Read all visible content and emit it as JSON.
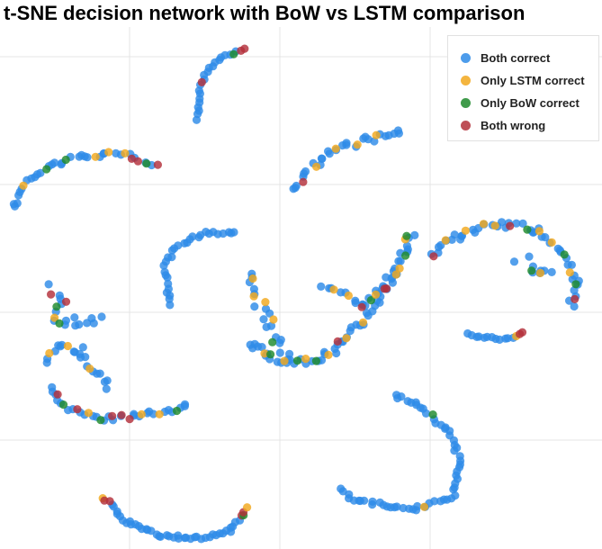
{
  "chart_data": {
    "type": "scatter",
    "title": "t-SNE decision network with BoW vs LSTM comparison",
    "xlabel": "",
    "ylabel": "",
    "grid": true,
    "legend_position": "top-right",
    "series": [
      {
        "name": "Both correct",
        "color": "#2e8be8"
      },
      {
        "name": "Only LSTM correct",
        "color": "#f2a81d"
      },
      {
        "name": "Only BoW correct",
        "color": "#1f8a2c"
      },
      {
        "name": "Both wrong",
        "color": "#b3303a"
      }
    ],
    "clusters": [
      {
        "path": [
          [
            220,
            132
          ],
          [
            222,
            95
          ],
          [
            232,
            75
          ],
          [
            250,
            62
          ],
          [
            272,
            55
          ]
        ],
        "n": 24,
        "jitter": 1.5,
        "labels": {
          "20": 2,
          "22": 3,
          "23": 3,
          "9": 3
        }
      },
      {
        "path": [
          [
            14,
            232
          ],
          [
            30,
            200
          ],
          [
            60,
            182
          ],
          [
            100,
            172
          ],
          [
            140,
            172
          ],
          [
            175,
            182
          ]
        ],
        "n": 40,
        "jitter": 3,
        "labels": {
          "6": 1,
          "12": 2,
          "18": 2,
          "24": 1,
          "28": 1,
          "31": 1,
          "33": 3,
          "35": 3,
          "37": 2,
          "39": 3
        }
      },
      {
        "path": [
          [
            328,
            212
          ],
          [
            345,
            185
          ],
          [
            372,
            165
          ],
          [
            405,
            155
          ],
          [
            445,
            148
          ]
        ],
        "n": 32,
        "jitter": 4,
        "labels": {
          "3": 3,
          "8": 1,
          "15": 1,
          "20": 1,
          "25": 1
        }
      },
      {
        "path": [
          [
            190,
            338
          ],
          [
            182,
            300
          ],
          [
            195,
            275
          ],
          [
            225,
            259
          ],
          [
            262,
            260
          ]
        ],
        "n": 30,
        "jitter": 2,
        "labels": {}
      },
      {
        "path": [
          [
            55,
            320
          ],
          [
            70,
            330
          ],
          [
            58,
            355
          ],
          [
            80,
            357
          ],
          [
            110,
            356
          ]
        ],
        "n": 20,
        "jitter": 5,
        "labels": {
          "1": 3,
          "4": 3,
          "6": 2,
          "8": 1,
          "10": 2
        }
      },
      {
        "path": [
          [
            48,
            400
          ],
          [
            62,
            385
          ],
          [
            90,
            390
          ],
          [
            100,
            410
          ],
          [
            120,
            430
          ]
        ],
        "n": 22,
        "jitter": 5,
        "labels": {
          "2": 1,
          "7": 1,
          "14": 1
        }
      },
      {
        "path": [
          [
            55,
            430
          ],
          [
            75,
            455
          ],
          [
            110,
            465
          ],
          [
            150,
            463
          ],
          [
            180,
            458
          ],
          [
            208,
            450
          ]
        ],
        "n": 38,
        "jitter": 3,
        "labels": {
          "3": 3,
          "6": 2,
          "9": 3,
          "12": 1,
          "15": 2,
          "18": 3,
          "20": 3,
          "22": 3,
          "26": 1,
          "30": 1,
          "34": 2
        }
      },
      {
        "path": [
          [
            278,
            305
          ],
          [
            290,
            340
          ],
          [
            305,
            375
          ],
          [
            320,
            395
          ]
        ],
        "n": 22,
        "jitter": 6,
        "labels": {
          "2": 1,
          "5": 1,
          "8": 1,
          "12": 1,
          "16": 2
        }
      },
      {
        "path": [
          [
            275,
            380
          ],
          [
            300,
            398
          ],
          [
            330,
            402
          ],
          [
            355,
            400
          ],
          [
            375,
            388
          ],
          [
            400,
            360
          ],
          [
            420,
            330
          ],
          [
            440,
            298
          ],
          [
            458,
            258
          ]
        ],
        "n": 70,
        "jitter": 5,
        "labels": {
          "5": 1,
          "9": 2,
          "13": 1,
          "16": 2,
          "19": 1,
          "22": 2,
          "26": 1,
          "30": 3,
          "34": 1,
          "40": 1,
          "46": 2,
          "52": 3,
          "58": 1,
          "62": 2,
          "66": 1,
          "68": 2
        }
      },
      {
        "path": [
          [
            360,
            320
          ],
          [
            385,
            325
          ],
          [
            405,
            342
          ],
          [
            425,
            320
          ],
          [
            440,
            305
          ]
        ],
        "n": 22,
        "jitter": 4,
        "labels": {
          "3": 1,
          "6": 1,
          "10": 3,
          "14": 1,
          "17": 3,
          "20": 1
        }
      },
      {
        "path": [
          [
            478,
            285
          ],
          [
            500,
            265
          ],
          [
            535,
            252
          ],
          [
            570,
            250
          ],
          [
            600,
            258
          ],
          [
            625,
            280
          ],
          [
            640,
            310
          ],
          [
            636,
            340
          ]
        ],
        "n": 55,
        "jitter": 4,
        "labels": {
          "0": 3,
          "6": 1,
          "12": 1,
          "16": 1,
          "20": 1,
          "24": 3,
          "27": 2,
          "32": 1,
          "36": 1,
          "40": 2,
          "44": 1,
          "48": 2,
          "52": 3
        }
      },
      {
        "path": [
          [
            578,
            290
          ],
          [
            595,
            298
          ],
          [
            615,
            305
          ]
        ],
        "n": 10,
        "jitter": 7,
        "labels": {
          "3": 2,
          "6": 1
        }
      },
      {
        "path": [
          [
            520,
            372
          ],
          [
            545,
            376
          ],
          [
            570,
            376
          ],
          [
            582,
            370
          ]
        ],
        "n": 15,
        "jitter": 1.5,
        "labels": {
          "12": 1,
          "13": 3,
          "14": 3
        }
      },
      {
        "path": [
          [
            440,
            438
          ],
          [
            470,
            455
          ],
          [
            500,
            480
          ],
          [
            512,
            515
          ],
          [
            505,
            550
          ],
          [
            470,
            565
          ],
          [
            430,
            563
          ],
          [
            395,
            555
          ],
          [
            378,
            545
          ]
        ],
        "n": 62,
        "jitter": 2.5,
        "labels": {
          "10": 2,
          "40": 1
        }
      },
      {
        "path": [
          [
            115,
            553
          ],
          [
            140,
            580
          ],
          [
            180,
            596
          ],
          [
            220,
            598
          ],
          [
            255,
            590
          ],
          [
            275,
            565
          ]
        ],
        "n": 48,
        "jitter": 2,
        "labels": {
          "0": 1,
          "1": 3,
          "2": 3,
          "44": 3,
          "45": 2,
          "46": 3,
          "47": 1
        }
      }
    ]
  }
}
